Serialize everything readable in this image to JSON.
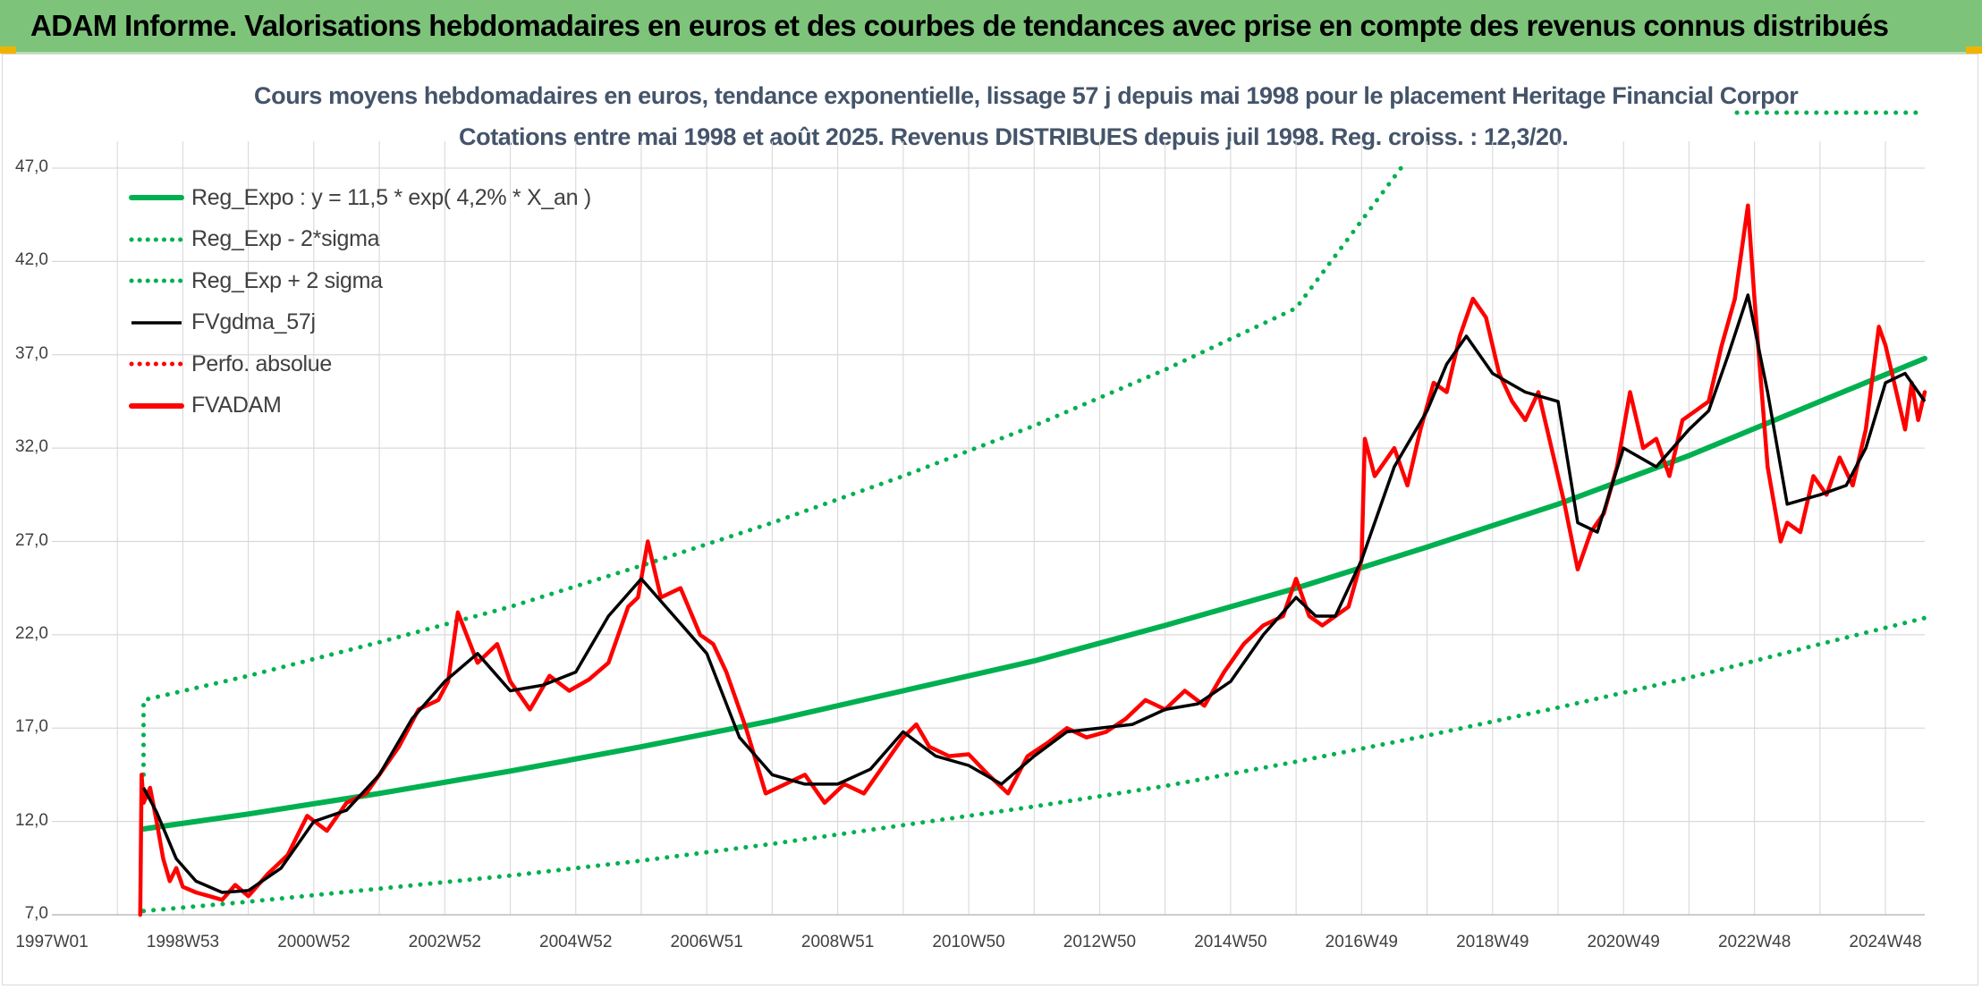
{
  "header": {
    "title": "ADAM Informe. Valorisations hebdomadaires en euros et des courbes de tendances avec prise en compte des revenus connus distribués"
  },
  "colors": {
    "header_bg": "#7dc47a",
    "reg_green": "#00b050",
    "dotted_green": "#00b050",
    "gdma_black": "#000000",
    "adam_red": "#ff0000",
    "title_text": "#44546a",
    "grid": "#d9d9d9"
  },
  "chart_data": {
    "type": "line",
    "title": "Cours moyens hebdomadaires en euros, tendance exponentielle, lissage 57 j depuis mai 1998 pour le placement Heritage Financial Corpor",
    "subtitle": "Cotations entre mai 1998 et août 2025. Revenus DISTRIBUES depuis juil 1998. Reg. croiss. : 12,3/20.",
    "xlabel": "",
    "ylabel": "",
    "ylim": [
      7.0,
      47.0
    ],
    "xlim": [
      1997.0,
      2025.6
    ],
    "yticks": [
      "47,0",
      "42,0",
      "37,0",
      "32,0",
      "27,0",
      "22,0",
      "17,0",
      "12,0",
      "7,0"
    ],
    "ytick_values": [
      47,
      42,
      37,
      32,
      27,
      22,
      17,
      12,
      7
    ],
    "xticks": [
      "1997W01",
      "1998W53",
      "2000W52",
      "2002W52",
      "2004W52",
      "2006W51",
      "2008W51",
      "2010W50",
      "2012W50",
      "2014W50",
      "2016W49",
      "2018W49",
      "2020W49",
      "2022W48",
      "2024W48"
    ],
    "xtick_values": [
      1997.0,
      1999.0,
      2001.0,
      2003.0,
      2005.0,
      2007.0,
      2009.0,
      2011.0,
      2013.0,
      2015.0,
      2017.0,
      2019.0,
      2021.0,
      2023.0,
      2025.0
    ],
    "grid": true,
    "legend_position": "top-left",
    "series": [
      {
        "name": "Reg_Expo : y = 11,5 * exp( 4,2% *  X_an )",
        "style": "solid-thick",
        "color": "#00b050",
        "x": [
          1998.4,
          2000.0,
          2002.0,
          2004.0,
          2006.0,
          2008.0,
          2010.0,
          2012.0,
          2014.0,
          2016.0,
          2018.0,
          2020.0,
          2022.0,
          2024.0,
          2025.6
        ],
        "values": [
          11.6,
          12.4,
          13.5,
          14.7,
          16.0,
          17.4,
          19.0,
          20.6,
          22.5,
          24.5,
          26.7,
          29.0,
          31.6,
          34.5,
          36.8
        ]
      },
      {
        "name": "Reg_Exp - 2*sigma",
        "style": "dotted",
        "color": "#00b050",
        "x": [
          1998.4,
          2000.0,
          2002.0,
          2004.0,
          2006.0,
          2008.0,
          2010.0,
          2012.0,
          2014.0,
          2016.0,
          2018.0,
          2020.0,
          2022.0,
          2024.0,
          2025.6
        ],
        "values": [
          7.2,
          7.7,
          8.4,
          9.1,
          9.9,
          10.8,
          11.8,
          12.8,
          13.9,
          15.2,
          16.6,
          18.1,
          19.7,
          21.5,
          22.9
        ]
      },
      {
        "name": "Reg_Exp + 2 sigma",
        "style": "dotted",
        "color": "#00b050",
        "x": [
          1998.4,
          1998.4,
          2000.0,
          2002.0,
          2004.0,
          2006.0,
          2008.0,
          2010.0,
          2012.0,
          2014.0,
          2016.0,
          2017.6
        ],
        "values": [
          14.5,
          18.5,
          19.8,
          21.6,
          23.5,
          25.7,
          28.0,
          30.5,
          33.2,
          36.2,
          39.5,
          47.0
        ]
      },
      {
        "name": "FVgdma_57j",
        "style": "solid",
        "color": "#000000",
        "x": [
          1998.4,
          1998.6,
          1998.9,
          1999.2,
          1999.6,
          2000.0,
          2000.5,
          2001.0,
          2001.5,
          2002.0,
          2002.5,
          2003.0,
          2003.5,
          2004.0,
          2004.5,
          2005.0,
          2005.5,
          2006.0,
          2006.5,
          2007.0,
          2007.5,
          2008.0,
          2008.5,
          2009.0,
          2009.5,
          2010.0,
          2010.5,
          2011.0,
          2011.5,
          2012.0,
          2012.5,
          2013.0,
          2013.5,
          2014.0,
          2014.5,
          2015.0,
          2015.5,
          2016.0,
          2016.3,
          2016.6,
          2017.0,
          2017.5,
          2018.0,
          2018.3,
          2018.6,
          2019.0,
          2019.5,
          2020.0,
          2020.3,
          2020.6,
          2021.0,
          2021.5,
          2022.0,
          2022.3,
          2022.6,
          2022.9,
          2023.2,
          2023.5,
          2024.0,
          2024.4,
          2024.7,
          2025.0,
          2025.3,
          2025.6
        ],
        "values": [
          13.8,
          12.5,
          10.0,
          8.8,
          8.2,
          8.3,
          9.5,
          12.0,
          12.6,
          14.5,
          17.5,
          19.5,
          21.0,
          19.0,
          19.3,
          20.0,
          23.0,
          25.0,
          23.0,
          21.0,
          16.5,
          14.5,
          14.0,
          14.0,
          14.8,
          16.8,
          15.5,
          15.0,
          14.0,
          15.5,
          16.8,
          17.0,
          17.2,
          18.0,
          18.3,
          19.5,
          22.0,
          24.0,
          23.0,
          23.0,
          26.0,
          31.0,
          34.0,
          36.5,
          38.0,
          36.0,
          35.0,
          34.5,
          28.0,
          27.5,
          32.0,
          31.0,
          33.0,
          34.0,
          37.0,
          40.2,
          35.0,
          29.0,
          29.5,
          30.0,
          32.0,
          35.5,
          36.0,
          34.5
        ]
      },
      {
        "name": "Perfo. absolue",
        "style": "dotted",
        "color": "#ff0000",
        "x": [],
        "values": []
      },
      {
        "name": "FVADAM",
        "style": "solid-thick",
        "color": "#ff0000",
        "x": [
          1998.35,
          1998.37,
          1998.4,
          1998.5,
          1998.6,
          1998.7,
          1998.8,
          1998.9,
          1999.0,
          1999.2,
          1999.4,
          1999.6,
          1999.8,
          2000.0,
          2000.3,
          2000.6,
          2000.9,
          2001.2,
          2001.5,
          2001.8,
          2002.0,
          2002.3,
          2002.6,
          2002.9,
          2003.05,
          2003.2,
          2003.5,
          2003.8,
          2004.0,
          2004.3,
          2004.6,
          2004.9,
          2005.2,
          2005.5,
          2005.8,
          2005.95,
          2006.1,
          2006.3,
          2006.6,
          2006.9,
          2007.1,
          2007.3,
          2007.6,
          2007.9,
          2008.2,
          2008.5,
          2008.8,
          2009.1,
          2009.4,
          2009.7,
          2010.0,
          2010.2,
          2010.4,
          2010.7,
          2011.0,
          2011.3,
          2011.6,
          2011.9,
          2012.2,
          2012.5,
          2012.8,
          2013.1,
          2013.4,
          2013.7,
          2014.0,
          2014.3,
          2014.6,
          2014.9,
          2015.2,
          2015.5,
          2015.8,
          2016.0,
          2016.2,
          2016.4,
          2016.6,
          2016.8,
          2017.0,
          2017.05,
          2017.2,
          2017.5,
          2017.7,
          2017.9,
          2018.1,
          2018.3,
          2018.5,
          2018.7,
          2018.9,
          2019.1,
          2019.3,
          2019.5,
          2019.7,
          2019.9,
          2020.1,
          2020.3,
          2020.5,
          2020.7,
          2020.9,
          2021.1,
          2021.3,
          2021.5,
          2021.7,
          2021.9,
          2022.1,
          2022.3,
          2022.5,
          2022.7,
          2022.9,
          2023.0,
          2023.2,
          2023.4,
          2023.5,
          2023.7,
          2023.9,
          2024.1,
          2024.3,
          2024.5,
          2024.7,
          2024.9,
          2025.0,
          2025.1,
          2025.3,
          2025.4,
          2025.5,
          2025.6
        ],
        "values": [
          7.0,
          14.5,
          13.0,
          13.8,
          12.0,
          10.0,
          8.8,
          9.5,
          8.5,
          8.2,
          8.0,
          7.8,
          8.6,
          8.0,
          9.2,
          10.2,
          12.3,
          11.5,
          13.0,
          13.5,
          14.5,
          16.0,
          18.0,
          18.5,
          19.5,
          23.2,
          20.5,
          21.5,
          19.5,
          18.0,
          19.8,
          19.0,
          19.6,
          20.5,
          23.5,
          24.0,
          27.0,
          24.0,
          24.5,
          22.0,
          21.5,
          20.0,
          17.0,
          13.5,
          14.0,
          14.5,
          13.0,
          14.0,
          13.5,
          15.0,
          16.5,
          17.2,
          16.0,
          15.5,
          15.6,
          14.5,
          13.5,
          15.5,
          16.2,
          17.0,
          16.5,
          16.8,
          17.5,
          18.5,
          18.0,
          19.0,
          18.2,
          20.0,
          21.5,
          22.5,
          23.0,
          25.0,
          23.0,
          22.5,
          23.0,
          23.5,
          26.0,
          32.5,
          30.5,
          32.0,
          30.0,
          33.0,
          35.5,
          35.0,
          38.0,
          40.0,
          39.0,
          36.0,
          34.5,
          33.5,
          35.0,
          32.0,
          29.0,
          25.5,
          27.5,
          28.5,
          31.0,
          35.0,
          32.0,
          32.5,
          30.5,
          33.5,
          34.0,
          34.5,
          37.5,
          40.0,
          45.0,
          40.0,
          31.0,
          27.0,
          28.0,
          27.5,
          30.5,
          29.5,
          31.5,
          30.0,
          33.0,
          38.5,
          37.5,
          36.0,
          33.0,
          35.5,
          33.5,
          35.0
        ]
      }
    ]
  }
}
